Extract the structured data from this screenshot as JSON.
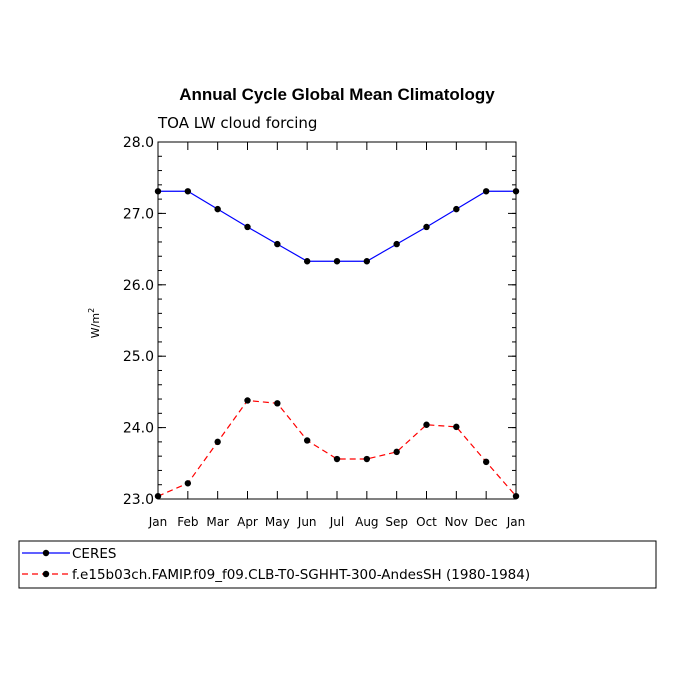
{
  "chart_data": {
    "type": "line",
    "title": "Annual Cycle Global Mean Climatology",
    "subtitle": "TOA LW cloud forcing",
    "ylabel": "W/m",
    "ylabel_superscript": "2",
    "xlabel": "",
    "categories": [
      "Jan",
      "Feb",
      "Mar",
      "Apr",
      "May",
      "Jun",
      "Jul",
      "Aug",
      "Sep",
      "Oct",
      "Nov",
      "Dec",
      "Jan"
    ],
    "ylim": [
      23.0,
      28.0
    ],
    "yticks": [
      "23.0",
      "24.0",
      "25.0",
      "26.0",
      "27.0",
      "28.0"
    ],
    "grid": false,
    "legend_position": "bottom",
    "series": [
      {
        "name": "CERES",
        "color": "#0000ff",
        "style": "solid",
        "values": [
          27.31,
          27.31,
          27.06,
          26.81,
          26.57,
          26.33,
          26.33,
          26.33,
          26.57,
          26.81,
          27.06,
          27.31,
          27.31
        ]
      },
      {
        "name": "f.e15b03ch.FAMIP.f09_f09.CLB-T0-SGHHT-300-AndesSH (1980-1984)",
        "color": "#ff0000",
        "style": "dashed",
        "values": [
          23.04,
          23.22,
          23.8,
          24.38,
          24.34,
          23.82,
          23.56,
          23.56,
          23.66,
          24.04,
          24.01,
          23.52,
          23.04
        ]
      }
    ]
  }
}
